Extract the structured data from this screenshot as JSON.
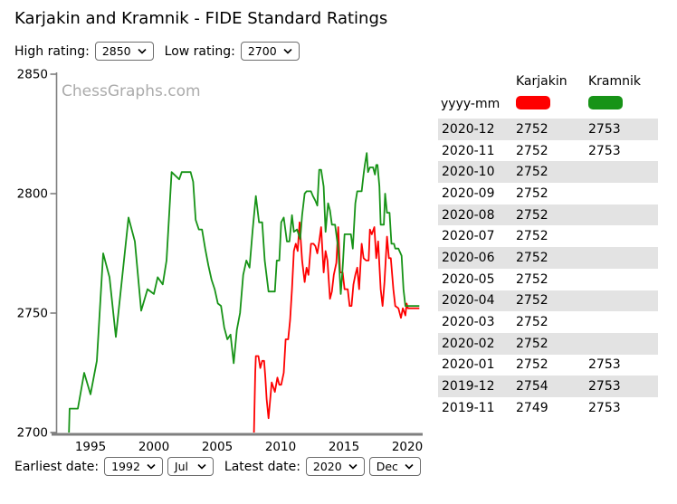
{
  "header": {
    "title": "Karjakin and Kramnik - FIDE Standard Ratings"
  },
  "controls": {
    "high_label": "High rating:",
    "high_value": "2850",
    "low_label": "Low rating:",
    "low_value": "2700",
    "earliest_label": "Earliest date:",
    "earliest_year": "1992",
    "earliest_month": "Jul",
    "latest_label": "Latest date:",
    "latest_year": "2020",
    "latest_month": "Dec"
  },
  "chart_data": {
    "type": "line",
    "title": "Karjakin and Kramnik - FIDE Standard Ratings",
    "watermark": "ChessGraphs.com",
    "xlabel": "",
    "ylabel": "",
    "ylim": [
      2700,
      2850
    ],
    "xlim": [
      1991.9,
      2021.2
    ],
    "yticks": [
      2850,
      2800,
      2750,
      2700
    ],
    "xticks": [
      1995,
      2000,
      2005,
      2010,
      2015,
      2020
    ],
    "grid": false,
    "legend_position": "top-right-table",
    "axis_color": "#7f7f7f",
    "watermark_color": "#ababab",
    "series": [
      {
        "name": "Kramnik",
        "color": "#179317",
        "points": [
          [
            1993.3,
            2700
          ],
          [
            1993.35,
            2710
          ],
          [
            1994.0,
            2710
          ],
          [
            1994.5,
            2725
          ],
          [
            1995.0,
            2716
          ],
          [
            1995.5,
            2730
          ],
          [
            1996.0,
            2775
          ],
          [
            1996.5,
            2765
          ],
          [
            1997.0,
            2740
          ],
          [
            1998.0,
            2790
          ],
          [
            1998.5,
            2780
          ],
          [
            1999.0,
            2751
          ],
          [
            1999.5,
            2760
          ],
          [
            2000.0,
            2758
          ],
          [
            2000.3,
            2765
          ],
          [
            2000.7,
            2762
          ],
          [
            2001.0,
            2772
          ],
          [
            2001.4,
            2809
          ],
          [
            2002.0,
            2806
          ],
          [
            2002.2,
            2809
          ],
          [
            2002.9,
            2809
          ],
          [
            2003.1,
            2805
          ],
          [
            2003.3,
            2789
          ],
          [
            2003.55,
            2785
          ],
          [
            2003.8,
            2785
          ],
          [
            2004.05,
            2777
          ],
          [
            2004.3,
            2770
          ],
          [
            2004.55,
            2764
          ],
          [
            2004.8,
            2760
          ],
          [
            2005.05,
            2754
          ],
          [
            2005.3,
            2753
          ],
          [
            2005.55,
            2744
          ],
          [
            2005.8,
            2739
          ],
          [
            2006.05,
            2741
          ],
          [
            2006.3,
            2729
          ],
          [
            2006.55,
            2743
          ],
          [
            2006.8,
            2750
          ],
          [
            2007.05,
            2766
          ],
          [
            2007.3,
            2772
          ],
          [
            2007.55,
            2769
          ],
          [
            2007.8,
            2785
          ],
          [
            2008.05,
            2799
          ],
          [
            2008.3,
            2788
          ],
          [
            2008.55,
            2788
          ],
          [
            2008.75,
            2772
          ],
          [
            2009.05,
            2759
          ],
          [
            2009.55,
            2759
          ],
          [
            2009.7,
            2772
          ],
          [
            2009.9,
            2772
          ],
          [
            2010.05,
            2788
          ],
          [
            2010.25,
            2790
          ],
          [
            2010.5,
            2780
          ],
          [
            2010.7,
            2780
          ],
          [
            2010.9,
            2791
          ],
          [
            2011.05,
            2784
          ],
          [
            2011.3,
            2785
          ],
          [
            2011.55,
            2781
          ],
          [
            2011.7,
            2791
          ],
          [
            2011.9,
            2800
          ],
          [
            2012.05,
            2801
          ],
          [
            2012.4,
            2801
          ],
          [
            2012.55,
            2799
          ],
          [
            2012.75,
            2797
          ],
          [
            2012.9,
            2795
          ],
          [
            2013.05,
            2810
          ],
          [
            2013.2,
            2810
          ],
          [
            2013.4,
            2803
          ],
          [
            2013.55,
            2784
          ],
          [
            2013.75,
            2796
          ],
          [
            2013.9,
            2793
          ],
          [
            2014.05,
            2787
          ],
          [
            2014.3,
            2787
          ],
          [
            2014.4,
            2783
          ],
          [
            2014.55,
            2777
          ],
          [
            2014.75,
            2758
          ],
          [
            2014.9,
            2769
          ],
          [
            2015.05,
            2783
          ],
          [
            2015.55,
            2783
          ],
          [
            2015.7,
            2777
          ],
          [
            2015.9,
            2796
          ],
          [
            2016.05,
            2801
          ],
          [
            2016.4,
            2801
          ],
          [
            2016.55,
            2808
          ],
          [
            2016.65,
            2812
          ],
          [
            2016.8,
            2817
          ],
          [
            2016.9,
            2809
          ],
          [
            2017.05,
            2811
          ],
          [
            2017.3,
            2811
          ],
          [
            2017.45,
            2808
          ],
          [
            2017.55,
            2812
          ],
          [
            2017.65,
            2812
          ],
          [
            2017.8,
            2803
          ],
          [
            2017.9,
            2787
          ],
          [
            2018.15,
            2787
          ],
          [
            2018.25,
            2800
          ],
          [
            2018.4,
            2792
          ],
          [
            2018.6,
            2792
          ],
          [
            2018.75,
            2779
          ],
          [
            2018.95,
            2779
          ],
          [
            2019.05,
            2777
          ],
          [
            2019.3,
            2777
          ],
          [
            2019.55,
            2774
          ],
          [
            2019.7,
            2760
          ],
          [
            2019.85,
            2753
          ],
          [
            2020.95,
            2753
          ]
        ]
      },
      {
        "name": "Karjakin",
        "color": "#fe0000",
        "points": [
          [
            2007.9,
            2700
          ],
          [
            2008.0,
            2725
          ],
          [
            2008.05,
            2732
          ],
          [
            2008.25,
            2732
          ],
          [
            2008.4,
            2727
          ],
          [
            2008.55,
            2730
          ],
          [
            2008.7,
            2730
          ],
          [
            2008.8,
            2723
          ],
          [
            2008.9,
            2714
          ],
          [
            2009.05,
            2706
          ],
          [
            2009.3,
            2721
          ],
          [
            2009.55,
            2717
          ],
          [
            2009.75,
            2723
          ],
          [
            2009.9,
            2720
          ],
          [
            2010.05,
            2720
          ],
          [
            2010.25,
            2725
          ],
          [
            2010.4,
            2739
          ],
          [
            2010.6,
            2739
          ],
          [
            2010.75,
            2747
          ],
          [
            2010.9,
            2760
          ],
          [
            2011.05,
            2776
          ],
          [
            2011.2,
            2779
          ],
          [
            2011.35,
            2776
          ],
          [
            2011.5,
            2788
          ],
          [
            2011.7,
            2772
          ],
          [
            2011.9,
            2763
          ],
          [
            2012.05,
            2769
          ],
          [
            2012.2,
            2766
          ],
          [
            2012.4,
            2779
          ],
          [
            2012.6,
            2779
          ],
          [
            2012.75,
            2778
          ],
          [
            2012.9,
            2775
          ],
          [
            2013.05,
            2780
          ],
          [
            2013.2,
            2786
          ],
          [
            2013.4,
            2767
          ],
          [
            2013.55,
            2776
          ],
          [
            2013.7,
            2772
          ],
          [
            2013.9,
            2756
          ],
          [
            2014.05,
            2759
          ],
          [
            2014.2,
            2766
          ],
          [
            2014.4,
            2771
          ],
          [
            2014.55,
            2786
          ],
          [
            2014.7,
            2767
          ],
          [
            2014.9,
            2767
          ],
          [
            2015.05,
            2760
          ],
          [
            2015.3,
            2760
          ],
          [
            2015.45,
            2753
          ],
          [
            2015.6,
            2753
          ],
          [
            2015.75,
            2762
          ],
          [
            2015.9,
            2766
          ],
          [
            2016.05,
            2769
          ],
          [
            2016.2,
            2760
          ],
          [
            2016.4,
            2779
          ],
          [
            2016.55,
            2773
          ],
          [
            2016.75,
            2772
          ],
          [
            2016.95,
            2772
          ],
          [
            2017.05,
            2785
          ],
          [
            2017.2,
            2783
          ],
          [
            2017.4,
            2786
          ],
          [
            2017.55,
            2773
          ],
          [
            2017.7,
            2780
          ],
          [
            2017.9,
            2760
          ],
          [
            2018.05,
            2753
          ],
          [
            2018.2,
            2763
          ],
          [
            2018.4,
            2782
          ],
          [
            2018.55,
            2773
          ],
          [
            2018.7,
            2773
          ],
          [
            2018.9,
            2760
          ],
          [
            2019.05,
            2753
          ],
          [
            2019.3,
            2752
          ],
          [
            2019.5,
            2748
          ],
          [
            2019.65,
            2752
          ],
          [
            2019.85,
            2749
          ],
          [
            2019.95,
            2754
          ],
          [
            2020.05,
            2752
          ],
          [
            2020.95,
            2752
          ]
        ]
      }
    ]
  },
  "table": {
    "date_header": "yyyy-mm",
    "columns": [
      "Karjakin",
      "Kramnik"
    ],
    "colors": {
      "karjakin": "#fe0000",
      "kramnik": "#179317"
    },
    "rows": [
      {
        "date": "2020-12",
        "karjakin": "2752",
        "kramnik": "2753"
      },
      {
        "date": "2020-11",
        "karjakin": "2752",
        "kramnik": "2753"
      },
      {
        "date": "2020-10",
        "karjakin": "2752",
        "kramnik": ""
      },
      {
        "date": "2020-09",
        "karjakin": "2752",
        "kramnik": ""
      },
      {
        "date": "2020-08",
        "karjakin": "2752",
        "kramnik": ""
      },
      {
        "date": "2020-07",
        "karjakin": "2752",
        "kramnik": ""
      },
      {
        "date": "2020-06",
        "karjakin": "2752",
        "kramnik": ""
      },
      {
        "date": "2020-05",
        "karjakin": "2752",
        "kramnik": ""
      },
      {
        "date": "2020-04",
        "karjakin": "2752",
        "kramnik": ""
      },
      {
        "date": "2020-03",
        "karjakin": "2752",
        "kramnik": ""
      },
      {
        "date": "2020-02",
        "karjakin": "2752",
        "kramnik": ""
      },
      {
        "date": "2020-01",
        "karjakin": "2752",
        "kramnik": "2753"
      },
      {
        "date": "2019-12",
        "karjakin": "2754",
        "kramnik": "2753"
      },
      {
        "date": "2019-11",
        "karjakin": "2749",
        "kramnik": "2753"
      }
    ]
  }
}
